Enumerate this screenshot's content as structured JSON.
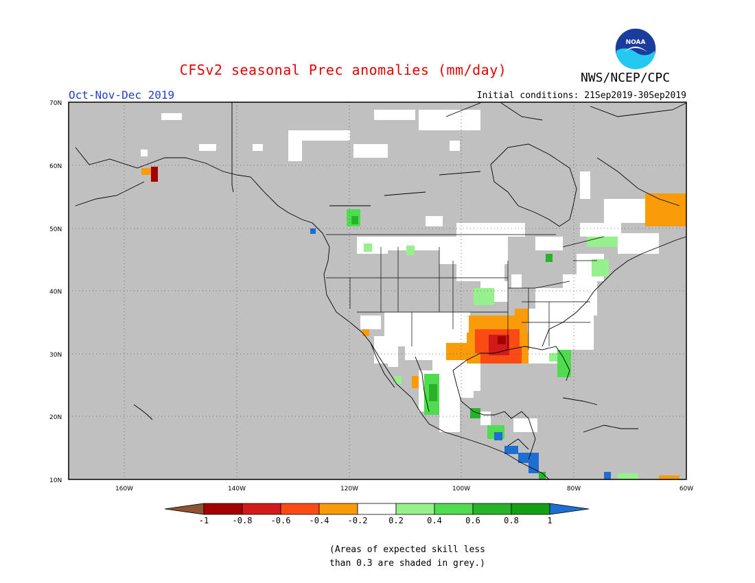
{
  "title": "CFSv2 seasonal Prec anomalies (mm/day)",
  "agency": "NWS/NCEP/CPC",
  "logo_text": "NOAA",
  "period": "Oct-Nov-Dec 2019",
  "initial_conditions": "Initial conditions: 21Sep2019-30Sep2019",
  "lat_labels": [
    "70N",
    "60N",
    "50N",
    "40N",
    "30N",
    "20N",
    "10N"
  ],
  "lon_labels": [
    "160W",
    "140W",
    "120W",
    "100W",
    "80W",
    "60W"
  ],
  "colorbar": {
    "ticks": [
      "-1",
      "-0.8",
      "-0.6",
      "-0.4",
      "-0.2",
      "0.2",
      "0.4",
      "0.6",
      "0.8",
      "1"
    ],
    "colors": [
      "#8c5432",
      "#a50000",
      "#d21a1a",
      "#fa4b14",
      "#fa9b0a",
      "#ffffff",
      "#96f08c",
      "#50dc50",
      "#28b428",
      "#14a014",
      "#1e6ed2"
    ]
  },
  "note_line1": "(Areas of expected skill less",
  "note_line2": "than 0.3 are shaded in grey.)",
  "colors": {
    "grey_mask": "#c0c0c0",
    "title_red": "#e60000",
    "period_blue": "#1f3fd0"
  }
}
